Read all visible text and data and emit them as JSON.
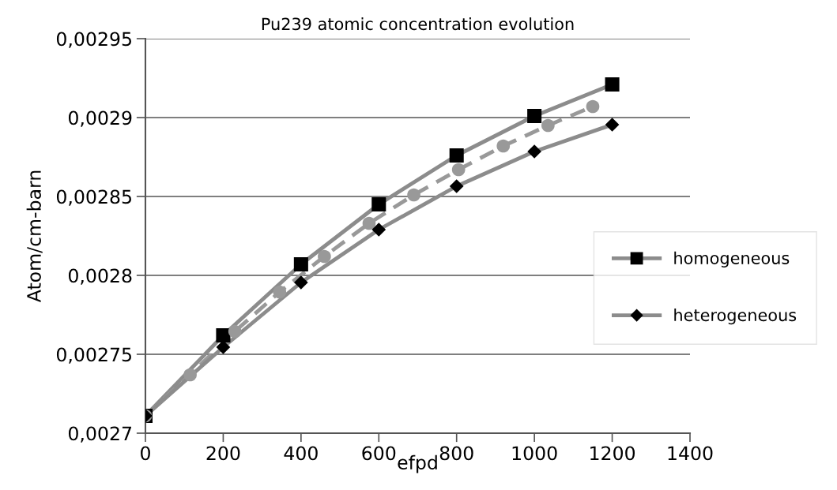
{
  "chart_data": {
    "type": "line",
    "title": "Pu239 atomic concentration evolution",
    "xlabel": "efpd",
    "ylabel": "Atom/cm-barn",
    "series": [
      {
        "name": "homogeneous",
        "color": "#8c8c8c",
        "colors": [
          "#000000",
          "#000000",
          "#000000",
          "#000000",
          "#000000",
          "#000000",
          "#000000"
        ],
        "marker": "square",
        "line_style": "solid",
        "x": [
          0,
          200,
          400,
          600,
          800,
          1000,
          1200
        ],
        "values": [
          0.002711,
          0.002762,
          0.002807,
          0.002845,
          0.002876,
          0.002901,
          0.002921
        ]
      },
      {
        "color": "#999999",
        "colors": [
          "#999999",
          "#999999",
          "#999999",
          "#999999",
          "#999999",
          "#999999",
          "#999999",
          "#999999",
          "#999999",
          "#999999",
          "#999999"
        ],
        "marker": "circle",
        "line_style": "dashed",
        "x": [
          0,
          115,
          230,
          345,
          460,
          575,
          690,
          805,
          920,
          1035,
          1150
        ],
        "values": [
          0.002711,
          0.002737,
          0.0027645,
          0.0027895,
          0.002812,
          0.002833,
          0.002851,
          0.002867,
          0.002882,
          0.002895,
          0.002907
        ]
      },
      {
        "name": "heterogeneous",
        "color": "#8c8c8c",
        "colors": [
          "#000000",
          "#000000",
          "#000000",
          "#000000",
          "#000000",
          "#000000",
          "#000000"
        ],
        "marker": "diamond",
        "line_style": "solid",
        "x": [
          0,
          200,
          400,
          600,
          800,
          1000,
          1200
        ],
        "values": [
          0.002711,
          0.0027545,
          0.0027955,
          0.002829,
          0.0028565,
          0.0028785,
          0.0028955
        ]
      }
    ],
    "xlim": [
      0,
      1400
    ],
    "xticks": [
      0,
      200,
      400,
      600,
      800,
      1000,
      1200,
      1400
    ],
    "ylim": [
      0.0027,
      0.00295
    ],
    "yticks": [
      {
        "value": 0.0027,
        "label": "0,0027"
      },
      {
        "value": 0.00275,
        "label": "0,00275"
      },
      {
        "value": 0.0028,
        "label": "0,0028"
      },
      {
        "value": 0.00285,
        "label": "0,00285"
      },
      {
        "value": 0.0029,
        "label": "0,0029"
      },
      {
        "value": 0.00295,
        "label": "0,00295"
      }
    ],
    "grid": "y",
    "legend": "right"
  }
}
